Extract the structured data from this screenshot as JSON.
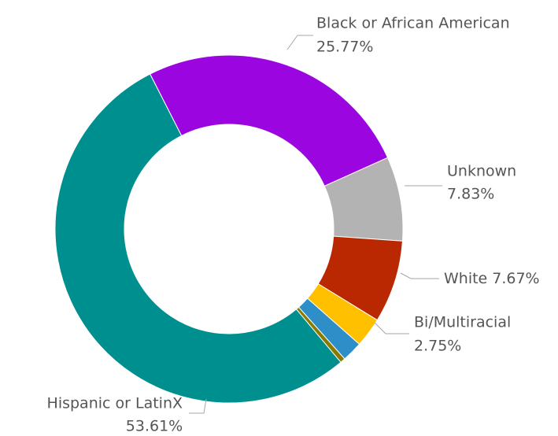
{
  "chart_data": {
    "type": "donut",
    "categories": [
      "Black or African American",
      "Unknown",
      "White",
      "Bi/Multiracial",
      null,
      null,
      "Hispanic or LatinX"
    ],
    "values": [
      25.77,
      7.83,
      7.67,
      2.75,
      1.9,
      0.47,
      53.61
    ],
    "value_labels": [
      "25.77%",
      "7.83%",
      "7.67%",
      "2.75%",
      null,
      null,
      "53.61%"
    ],
    "colors": [
      "#9b06e0",
      "#b3b3b3",
      "#b92800",
      "#ffc000",
      "#2e8fc8",
      "#8a7a00",
      "#008f8f"
    ]
  }
}
